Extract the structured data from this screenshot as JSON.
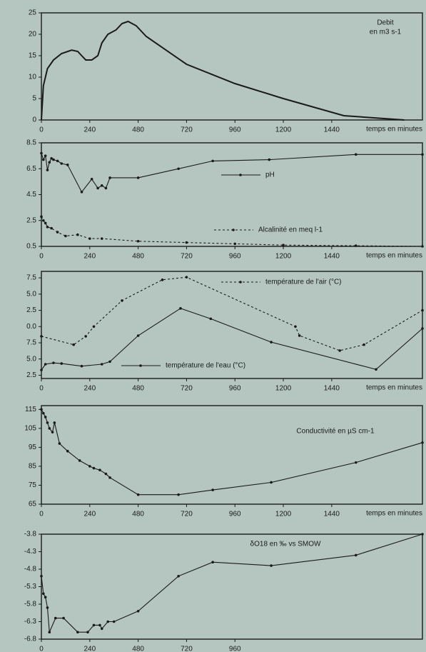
{
  "chart_data": [
    {
      "type": "line",
      "title": "Debit",
      "subtitle": "en m3 s-1",
      "x_label": "temps en minutes",
      "xlim": [
        0,
        1890
      ],
      "xticks": [
        0,
        240,
        480,
        720,
        960,
        1200,
        1440
      ],
      "ylim": [
        0,
        25
      ],
      "yticks": [
        0,
        5,
        10,
        15,
        20,
        25
      ],
      "markers": false,
      "series": [
        {
          "name": null,
          "color": "#1a1a1a",
          "style": "solid",
          "x": [
            0,
            10,
            30,
            60,
            100,
            150,
            180,
            200,
            220,
            250,
            280,
            300,
            330,
            370,
            400,
            430,
            470,
            520,
            720,
            960,
            1200,
            1500,
            1800
          ],
          "values": [
            0,
            8,
            12,
            14,
            15.5,
            16.3,
            16,
            15,
            14,
            14,
            15,
            18,
            20,
            21,
            22.5,
            23,
            22,
            19.5,
            13,
            8.5,
            5,
            1,
            0
          ]
        }
      ]
    },
    {
      "type": "line",
      "x_label": "temps en minutes",
      "xlim": [
        0,
        1890
      ],
      "xticks": [
        0,
        240,
        480,
        720,
        960,
        1200,
        1440
      ],
      "ylim": [
        0.5,
        8.5
      ],
      "yticks": [
        0.5,
        2.5,
        4.5,
        6.5,
        8.5
      ],
      "markers": true,
      "series": [
        {
          "name": "pH",
          "color": "#1a1a1a",
          "style": "solid",
          "x": [
            0,
            10,
            20,
            30,
            40,
            50,
            60,
            80,
            100,
            130,
            200,
            250,
            280,
            300,
            320,
            340,
            480,
            680,
            850,
            1130,
            1560,
            1890
          ],
          "values": [
            7.7,
            7.2,
            7.5,
            6.4,
            7.0,
            7.3,
            7.2,
            7.1,
            6.9,
            6.8,
            4.7,
            5.7,
            5.0,
            5.2,
            5.0,
            5.8,
            5.8,
            6.5,
            7.1,
            7.2,
            7.6,
            7.6
          ]
        },
        {
          "name": "Alcalinité en meq l-1",
          "color": "#1a1a1a",
          "style": "dashed",
          "x": [
            0,
            10,
            20,
            30,
            50,
            80,
            120,
            180,
            240,
            300,
            480,
            720,
            960,
            1200,
            1560,
            1890
          ],
          "values": [
            2.8,
            2.5,
            2.3,
            2.0,
            1.9,
            1.6,
            1.3,
            1.4,
            1.1,
            1.1,
            0.9,
            0.8,
            0.7,
            0.6,
            0.55,
            0.5
          ]
        }
      ]
    },
    {
      "type": "line",
      "x_label": "temps en minutes",
      "xlim": [
        0,
        1890
      ],
      "xticks": [
        0,
        240,
        480,
        720,
        960,
        1200,
        1440
      ],
      "ylim": [
        2.0,
        18.5
      ],
      "yticks": [
        {
          "value": 17.5,
          "label": "7.5"
        },
        {
          "value": 15,
          "label": "5.0"
        },
        {
          "value": 12.5,
          "label": "2.5"
        },
        {
          "value": 10,
          "label": "0.0"
        },
        7.5,
        {
          "value": 5,
          "label": "5.0"
        },
        2.5
      ],
      "markers": true,
      "series": [
        {
          "name": "température de l'air (°C)",
          "color": "#1a1a1a",
          "style": "dashed",
          "x": [
            0,
            160,
            220,
            260,
            400,
            600,
            720,
            1260,
            1280,
            1480,
            1600,
            1890
          ],
          "values": [
            8.5,
            7.2,
            8.5,
            10,
            14,
            17.2,
            17.6,
            10,
            8.6,
            6.3,
            7.2,
            12.5
          ]
        },
        {
          "name": "température de l'eau (°C)",
          "color": "#1a1a1a",
          "style": "solid",
          "x": [
            0,
            20,
            60,
            100,
            200,
            300,
            340,
            480,
            690,
            840,
            1140,
            1660,
            1890
          ],
          "values": [
            3.3,
            4.2,
            4.4,
            4.3,
            3.9,
            4.2,
            4.6,
            8.6,
            12.8,
            11.2,
            7.6,
            3.4,
            9.7
          ]
        }
      ]
    },
    {
      "type": "line",
      "title": "Conductivité en µS cm-1",
      "x_label": "temps en minutes",
      "xlim": [
        0,
        1890
      ],
      "xticks": [
        0,
        240,
        480,
        720,
        960,
        1200,
        1440
      ],
      "ylim": [
        65,
        117
      ],
      "yticks": [
        65,
        75,
        85,
        95,
        105,
        115
      ],
      "markers": true,
      "series": [
        {
          "name": null,
          "color": "#1a1a1a",
          "style": "solid",
          "x": [
            0,
            10,
            20,
            30,
            40,
            55,
            65,
            90,
            130,
            190,
            240,
            260,
            290,
            320,
            340,
            480,
            680,
            850,
            1140,
            1560,
            1890
          ],
          "values": [
            115,
            113,
            111,
            108,
            105,
            103,
            108,
            97,
            93,
            88,
            85,
            84,
            83,
            81,
            79,
            70,
            70,
            72.5,
            76.5,
            87,
            97.5
          ]
        }
      ]
    },
    {
      "type": "line",
      "title": "δO18 en ‰ vs SMOW",
      "xlim": [
        0,
        1890
      ],
      "xticks": [
        0,
        240,
        480,
        720,
        960
      ],
      "ylim": [
        -6.8,
        -3.8
      ],
      "yticks": [
        -3.8,
        -4.3,
        -4.8,
        -5.3,
        -5.8,
        -6.3,
        -6.8
      ],
      "markers": true,
      "series": [
        {
          "name": null,
          "color": "#1a1a1a",
          "style": "solid",
          "x": [
            0,
            10,
            20,
            30,
            40,
            70,
            110,
            180,
            230,
            260,
            290,
            300,
            330,
            360,
            480,
            680,
            850,
            1140,
            1560,
            1890
          ],
          "values": [
            -5.0,
            -5.5,
            -5.6,
            -5.9,
            -6.6,
            -6.2,
            -6.2,
            -6.6,
            -6.6,
            -6.4,
            -6.4,
            -6.5,
            -6.3,
            -6.3,
            -6.0,
            -5.0,
            -4.6,
            -4.7,
            -4.4,
            -3.8
          ]
        }
      ]
    }
  ]
}
